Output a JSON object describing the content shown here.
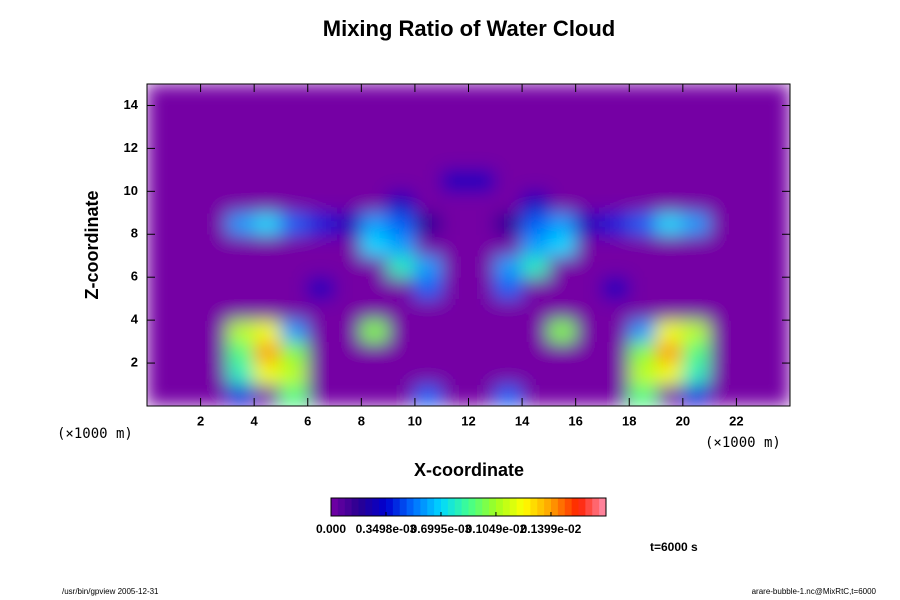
{
  "chart_data": {
    "type": "heatmap",
    "title": "Mixing Ratio of Water Cloud",
    "xlabel": "X-coordinate",
    "ylabel": "Z-coordinate",
    "x_multiplier": "(×1000 m)",
    "y_multiplier": "(×1000 m)",
    "time_label": "t=6000 s",
    "footer_left": "/usr/bin/gpview 2005-12-31",
    "footer_right": "arare-bubble-1.nc@MixRtC,t=6000",
    "xlim": [
      0,
      24
    ],
    "ylim": [
      0,
      15
    ],
    "xticks": [
      2,
      4,
      6,
      8,
      10,
      12,
      14,
      16,
      18,
      20,
      22
    ],
    "yticks": [
      2,
      4,
      6,
      8,
      10,
      12,
      14
    ],
    "x": [
      0.5,
      1.5,
      2.5,
      3.5,
      4.5,
      5.5,
      6.5,
      7.5,
      8.5,
      9.5,
      10.5,
      11.5,
      12.5,
      13.5,
      14.5,
      15.5,
      16.5,
      17.5,
      18.5,
      19.5,
      20.5,
      21.5,
      22.5,
      23.5
    ],
    "y": [
      0.5,
      1.5,
      2.5,
      3.5,
      4.5,
      5.5,
      6.5,
      7.5,
      8.5,
      9.5,
      10.5,
      11.5,
      12.5,
      13.5,
      14.5
    ],
    "z": [
      [
        0,
        0,
        0,
        0.0004,
        0,
        0.0009,
        0,
        0,
        0,
        0,
        0.0005,
        0,
        0,
        0.0005,
        0,
        0,
        0,
        0,
        0.0009,
        0,
        0.0004,
        0,
        0,
        0
      ],
      [
        0,
        0,
        0,
        0.0008,
        0.0012,
        0.0011,
        0,
        0,
        0,
        0,
        0,
        0,
        0,
        0,
        0,
        0,
        0,
        0,
        0.0011,
        0.0012,
        0.0008,
        0,
        0,
        0
      ],
      [
        0,
        0,
        0,
        0.0009,
        0.0014,
        0.001,
        0,
        0,
        0,
        0,
        0,
        0,
        0,
        0,
        0,
        0,
        0,
        0,
        0.001,
        0.0014,
        0.0009,
        0,
        0,
        0
      ],
      [
        0,
        0,
        0,
        0.0011,
        0.0012,
        0.0006,
        0,
        0,
        0.001,
        0,
        0,
        0,
        0,
        0,
        0,
        0.001,
        0,
        0,
        0.0006,
        0.0012,
        0.0011,
        0,
        0,
        0
      ],
      [
        0,
        0,
        0,
        0,
        0,
        0,
        0,
        0,
        0,
        0,
        0,
        0,
        0,
        0,
        0,
        0,
        0,
        0,
        0,
        0,
        0,
        0,
        0,
        0
      ],
      [
        0,
        0,
        0,
        0,
        0,
        0,
        0.0003,
        0,
        0,
        0,
        0.0005,
        0,
        0,
        0.0005,
        0,
        0,
        0,
        0.0003,
        0,
        0,
        0,
        0,
        0,
        0
      ],
      [
        0,
        0,
        0,
        0,
        0,
        0,
        0,
        0,
        0,
        0.0008,
        0.0006,
        0,
        0,
        0.0006,
        0.0008,
        0,
        0,
        0,
        0,
        0,
        0,
        0,
        0,
        0
      ],
      [
        0,
        0,
        0,
        0,
        0,
        0,
        0,
        0,
        0.0007,
        0.0006,
        0,
        0,
        0,
        0,
        0.0006,
        0.0007,
        0,
        0,
        0,
        0,
        0,
        0,
        0,
        0
      ],
      [
        0,
        0,
        0,
        0.0006,
        0.0007,
        0.0005,
        0.0004,
        0.0003,
        0.0006,
        0.0005,
        0.0002,
        0,
        0,
        0.0002,
        0.0005,
        0.0006,
        0.0003,
        0.0004,
        0.0005,
        0.0007,
        0.0006,
        0,
        0,
        0
      ],
      [
        0,
        0,
        0,
        0,
        0,
        0,
        0,
        0,
        0,
        0.0003,
        0,
        0,
        0,
        0,
        0.0003,
        0,
        0,
        0,
        0,
        0,
        0,
        0,
        0,
        0
      ],
      [
        0,
        0,
        0,
        0,
        0,
        0,
        0,
        0,
        0,
        0,
        0,
        0.0003,
        0.0003,
        0,
        0,
        0,
        0,
        0,
        0,
        0,
        0,
        0,
        0,
        0
      ],
      [
        0,
        0,
        0,
        0,
        0,
        0,
        0,
        0,
        0,
        0,
        0,
        0,
        0,
        0,
        0,
        0,
        0,
        0,
        0,
        0,
        0,
        0,
        0,
        0
      ],
      [
        0,
        0,
        0,
        0,
        0,
        0,
        0,
        0,
        0,
        0,
        0,
        0,
        0,
        0,
        0,
        0,
        0,
        0,
        0,
        0,
        0,
        0,
        0,
        0
      ],
      [
        0,
        0,
        0,
        0,
        0,
        0,
        0,
        0,
        0,
        0,
        0,
        0,
        0,
        0,
        0,
        0,
        0,
        0,
        0,
        0,
        0,
        0,
        0,
        0
      ],
      [
        0,
        0,
        0,
        0,
        0,
        0,
        0,
        0,
        0,
        0,
        0,
        0,
        0,
        0,
        0,
        0,
        0,
        0,
        0,
        0,
        0,
        0,
        0,
        0
      ]
    ],
    "colorbar": {
      "lim": [
        0,
        0.001749
      ],
      "ticks": [
        {
          "value": 0,
          "label": "0.000"
        },
        {
          "value": 0.0003498,
          "label": "0.3498e-03"
        },
        {
          "value": 0.0006995,
          "label": "0.6995e-03"
        },
        {
          "value": 0.001049,
          "label": "0.1049e-02"
        },
        {
          "value": 0.001399,
          "label": "0.1399e-02"
        }
      ],
      "colors": [
        "#7400a4",
        "#2a0090",
        "#0000d0",
        "#0070ff",
        "#00d8ff",
        "#40ff90",
        "#a0ff20",
        "#ffff00",
        "#ffa000",
        "#ff2000",
        "#ff90b0"
      ]
    }
  }
}
